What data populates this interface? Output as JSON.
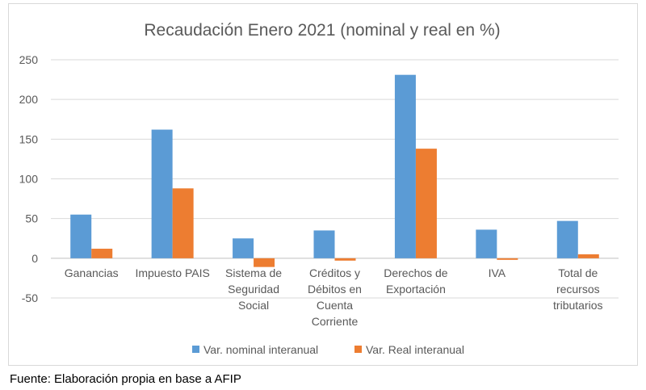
{
  "chart_data": {
    "type": "bar",
    "title": "Recaudación Enero 2021 (nominal y real en %)",
    "categories": [
      [
        "Ganancias"
      ],
      [
        "Impuesto PAIS"
      ],
      [
        "Sistema de",
        "Seguridad",
        "Social"
      ],
      [
        "Créditos y",
        "Débitos en",
        "Cuenta",
        "Corriente"
      ],
      [
        "Derechos de",
        "Exportación"
      ],
      [
        "IVA"
      ],
      [
        "Total de",
        "recursos",
        "tributarios"
      ]
    ],
    "series": [
      {
        "name": "Var. nominal interanual",
        "color": "#5b9bd5",
        "values": [
          55,
          162,
          25,
          35,
          231,
          36,
          47
        ]
      },
      {
        "name": "Var. Real interanual",
        "color": "#ed7d31",
        "values": [
          12,
          88,
          -11,
          -3,
          138,
          -2,
          5
        ]
      }
    ],
    "ylim": [
      -50,
      250
    ],
    "yticks": [
      -50,
      0,
      50,
      100,
      150,
      200,
      250
    ],
    "grid": true,
    "legend": "bottom",
    "xlabel": "",
    "ylabel": ""
  },
  "source_note": "Fuente: Elaboración propia en base a AFIP"
}
